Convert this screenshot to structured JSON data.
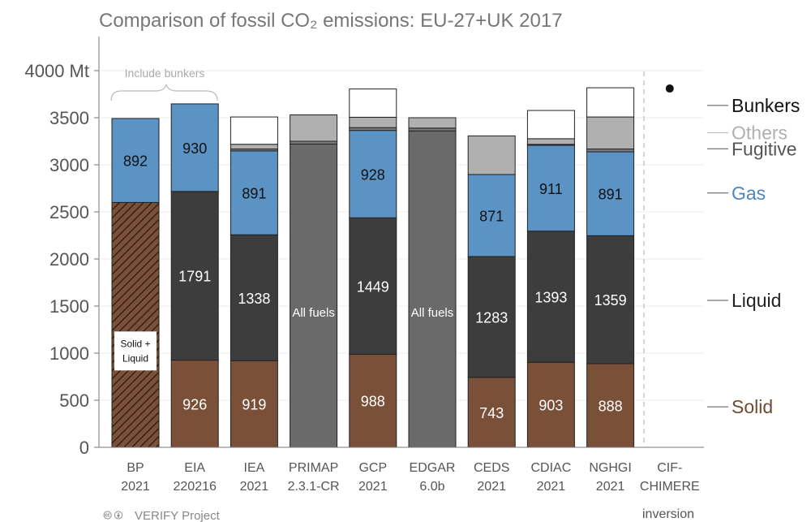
{
  "chart_data": {
    "type": "bar",
    "stacked": true,
    "title": "Comparison of fossil CO₂ emissions: EU-27+UK 2017",
    "y_unit": "Mt",
    "ylim": [
      0,
      4200
    ],
    "yticks": [
      0,
      500,
      1000,
      1500,
      2000,
      2500,
      3000,
      3500,
      4000
    ],
    "ytick_labels": [
      "0",
      "500",
      "1000",
      "1500",
      "2000",
      "2500",
      "3000",
      "3500",
      "4000 Mt"
    ],
    "categories": [
      {
        "line1": "BP",
        "line2": "2021"
      },
      {
        "line1": "EIA",
        "line2": "220216"
      },
      {
        "line1": "IEA",
        "line2": "2021"
      },
      {
        "line1": "PRIMAP",
        "line2": "2.3.1-CR"
      },
      {
        "line1": "GCP",
        "line2": "2021"
      },
      {
        "line1": "EDGAR",
        "line2": "6.0b"
      },
      {
        "line1": "CEDS",
        "line2": "2021"
      },
      {
        "line1": "CDIAC",
        "line2": "2021"
      },
      {
        "line1": "NGHGI",
        "line2": "2021"
      },
      {
        "line1": "CIF-",
        "line2": "CHIMERE"
      }
    ],
    "bars": [
      {
        "solid_liquid": 2600,
        "gas": 892,
        "fugitive": 0,
        "others": 0,
        "bunkers": 0
      },
      {
        "solid": 926,
        "liquid": 1791,
        "gas": 930,
        "fugitive": 0,
        "others": 0,
        "bunkers": 0
      },
      {
        "solid": 919,
        "liquid": 1338,
        "gas": 891,
        "fugitive": 20,
        "others": 50,
        "bunkers": 290
      },
      {
        "all_fuels": 3220,
        "fugitive": 30,
        "others": 280,
        "bunkers": 0
      },
      {
        "solid": 988,
        "liquid": 1449,
        "gas": 928,
        "fugitive": 30,
        "others": 110,
        "bunkers": 300
      },
      {
        "all_fuels": 3360,
        "fugitive": 30,
        "others": 110,
        "bunkers": 0
      },
      {
        "solid": 743,
        "liquid": 1283,
        "gas": 871,
        "fugitive": 0,
        "others": 410,
        "bunkers": 0
      },
      {
        "solid": 903,
        "liquid": 1393,
        "gas": 911,
        "fugitive": 10,
        "others": 60,
        "bunkers": 300
      },
      {
        "solid": 888,
        "liquid": 1359,
        "gas": 891,
        "fugitive": 30,
        "others": 340,
        "bunkers": 310
      },
      {
        "point": 3810
      }
    ],
    "value_labels": {
      "solid": [
        "",
        "926",
        "919",
        "",
        "988",
        "",
        "743",
        "903",
        "888",
        ""
      ],
      "liquid": [
        "",
        "1791",
        "1338",
        "",
        "1449",
        "",
        "1283",
        "1393",
        "1359",
        ""
      ],
      "gas": [
        "892",
        "930",
        "891",
        "",
        "928",
        "",
        "871",
        "911",
        "891",
        ""
      ],
      "all_fuels": [
        "",
        "",
        "",
        "All fuels",
        "",
        "All fuels",
        "",
        "",
        "",
        ""
      ]
    },
    "solid_liquid_label": [
      "Solid +",
      "Liquid"
    ],
    "series": [
      {
        "key": "bunkers",
        "name": "Bunkers",
        "color": "#ffffff",
        "text_color": "#111111",
        "anchor": 3630
      },
      {
        "key": "others",
        "name": "Others",
        "color": "#b0b0b0",
        "text_color": "#b0b0b0",
        "anchor": 3340
      },
      {
        "key": "fugitive",
        "name": "Fugitive",
        "color": "#7a7a7a",
        "text_color": "#555555",
        "anchor": 3170
      },
      {
        "key": "gas",
        "name": "Gas",
        "color": "#5b93c4",
        "text_color": "#4a86c0",
        "anchor": 2700
      },
      {
        "key": "liquid",
        "name": "Liquid",
        "color": "#3d3d3d",
        "text_color": "#222222",
        "anchor": 1560
      },
      {
        "key": "solid",
        "name": "Solid",
        "color": "#7a5039",
        "text_color": "#6e4a33",
        "anchor": 430
      }
    ],
    "all_fuels_color": "#6a6a6a",
    "bp_hatch_color": "#7a5039",
    "annotation_bunkers": "Include bunkers",
    "subcaption": "inversion",
    "grid": true
  },
  "footer": {
    "cc_icons": "🅭 🅯",
    "project": "VERIFY Project"
  }
}
